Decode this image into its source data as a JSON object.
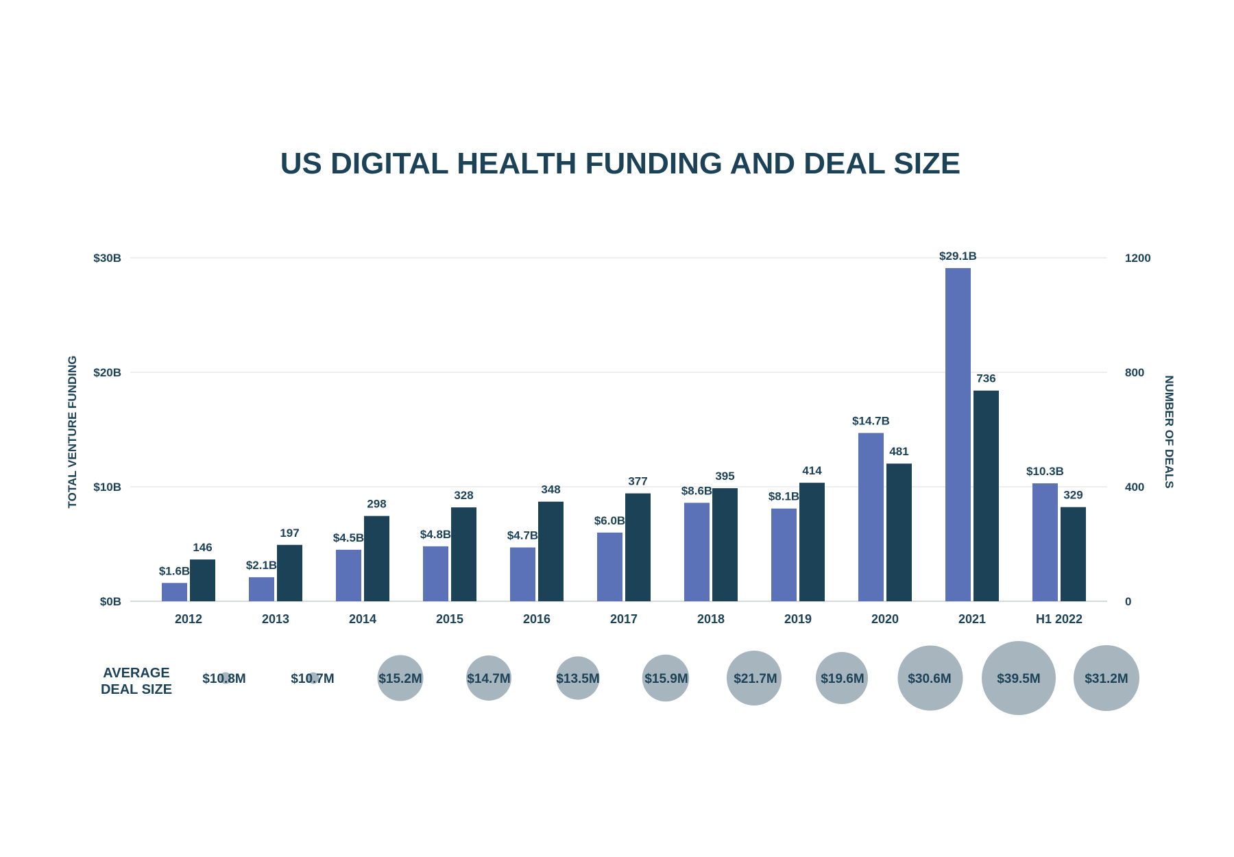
{
  "chart_data": {
    "type": "bar",
    "title": "US DIGITAL HEALTH FUNDING AND DEAL SIZE",
    "categories": [
      "2012",
      "2013",
      "2014",
      "2015",
      "2016",
      "2017",
      "2018",
      "2019",
      "2020",
      "2021",
      "H1 2022"
    ],
    "series": [
      {
        "name": "TOTAL VENTURE FUNDING",
        "axis": "left",
        "values": [
          1.6,
          2.1,
          4.5,
          4.8,
          4.7,
          6.0,
          8.6,
          8.1,
          14.7,
          29.1,
          10.3
        ],
        "labels": [
          "$1.6B",
          "$2.1B",
          "$4.5B",
          "$4.8B",
          "$4.7B",
          "$6.0B",
          "$8.6B",
          "$8.1B",
          "$14.7B",
          "$29.1B",
          "$10.3B"
        ],
        "color": "#5b72b8"
      },
      {
        "name": "NUMBER OF DEALS",
        "axis": "right",
        "values": [
          146,
          197,
          298,
          328,
          348,
          377,
          395,
          414,
          481,
          736,
          329
        ],
        "labels": [
          "146",
          "197",
          "298",
          "328",
          "348",
          "377",
          "395",
          "414",
          "481",
          "736",
          "329"
        ],
        "color": "#1c4257"
      }
    ],
    "ylabel": "TOTAL VENTURE FUNDING",
    "y2label": "NUMBER OF DEALS",
    "ylim": [
      0,
      30
    ],
    "y2lim": [
      0,
      1200
    ],
    "yticks": [
      "$0B",
      "$10B",
      "$20B",
      "$30B"
    ],
    "y2ticks": [
      "0",
      "400",
      "800",
      "1200"
    ],
    "grid": true,
    "bubbles": {
      "label_line1": "AVERAGE",
      "label_line2": "DEAL SIZE",
      "values": [
        10.8,
        10.7,
        15.2,
        14.7,
        13.5,
        15.9,
        21.7,
        19.6,
        30.6,
        39.5,
        31.2
      ],
      "labels": [
        "$10.8M",
        "$10.7M",
        "$15.2M",
        "$14.7M",
        "$13.5M",
        "$15.9M",
        "$21.7M",
        "$19.6M",
        "$30.6M",
        "$39.5M",
        "$31.2M"
      ],
      "color": "#a6b5be"
    },
    "colors": {
      "text": "#1c4257",
      "grid": "#d9dde0"
    }
  }
}
